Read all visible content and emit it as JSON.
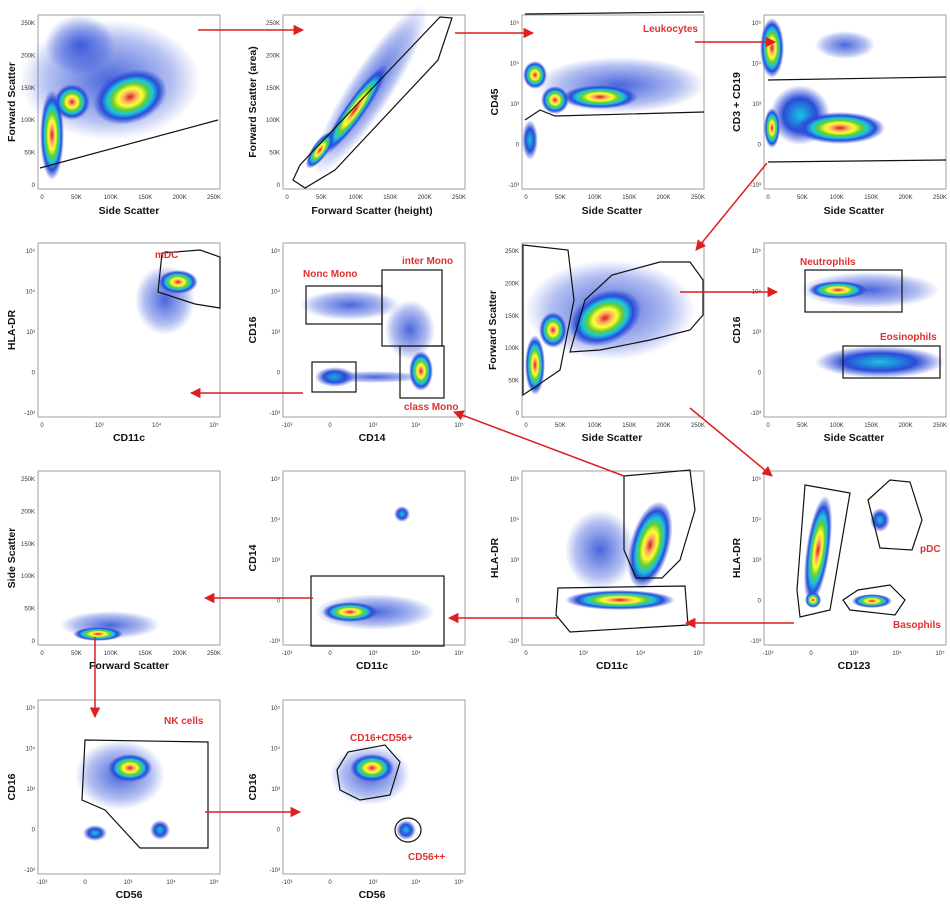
{
  "colors": {
    "arrow": "#dd1f1f",
    "gate": "#111111",
    "population_label": "#e03030"
  },
  "panels": [
    {
      "id": "p1",
      "xlabel": "Side Scatter",
      "ylabel": "Forward Scatter",
      "xticks": [
        "0",
        "50K",
        "100K",
        "150K",
        "200K",
        "250K"
      ],
      "yticks": [
        "250K",
        "200K",
        "150K",
        "100K",
        "50K",
        "0"
      ]
    },
    {
      "id": "p2",
      "xlabel": "Forward Scatter (height)",
      "ylabel": "Forward Scatter (area)",
      "xticks": [
        "0",
        "50K",
        "100K",
        "150K",
        "200K",
        "250K"
      ],
      "yticks": [
        "250K",
        "200K",
        "150K",
        "100K",
        "50K",
        "0"
      ]
    },
    {
      "id": "p3",
      "xlabel": "Side Scatter",
      "ylabel": "CD45",
      "xticks": [
        "0",
        "50K",
        "100K",
        "150K",
        "200K",
        "250K"
      ],
      "yticks": [
        "10⁵",
        "10⁴",
        "10³",
        "0",
        "-10³"
      ],
      "gates": [
        "Leukocytes"
      ]
    },
    {
      "id": "p4",
      "xlabel": "Side Scatter",
      "ylabel": "CD3 + CD19",
      "xticks": [
        "0",
        "50K",
        "100K",
        "150K",
        "200K",
        "250K"
      ],
      "yticks": [
        "10⁵",
        "10⁴",
        "10³",
        "0",
        "-10³"
      ]
    },
    {
      "id": "p5",
      "xlabel": "CD11c",
      "ylabel": "HLA-DR",
      "xticks": [
        "0",
        "10³",
        "10⁴",
        "10⁵"
      ],
      "yticks": [
        "10⁵",
        "10⁴",
        "10³",
        "0",
        "-10³"
      ],
      "gates": [
        "mDC"
      ]
    },
    {
      "id": "p6",
      "xlabel": "CD14",
      "ylabel": "CD16",
      "xticks": [
        "-10³",
        "0",
        "10³",
        "10⁴",
        "10⁵"
      ],
      "yticks": [
        "10⁵",
        "10⁴",
        "10³",
        "0",
        "-10³"
      ],
      "gates": [
        "Nonc Mono",
        "inter Mono",
        "class Mono"
      ]
    },
    {
      "id": "p7",
      "xlabel": "Side Scatter",
      "ylabel": "Forward Scatter",
      "xticks": [
        "0",
        "50K",
        "100K",
        "150K",
        "200K",
        "250K"
      ],
      "yticks": [
        "250K",
        "200K",
        "150K",
        "100K",
        "50K",
        "0"
      ]
    },
    {
      "id": "p8",
      "xlabel": "Side Scatter",
      "ylabel": "CD16",
      "xticks": [
        "0",
        "50K",
        "100K",
        "150K",
        "200K",
        "250K"
      ],
      "yticks": [
        "10⁵",
        "10⁴",
        "10³",
        "0",
        "-10³"
      ],
      "gates": [
        "Neutrophils",
        "Eosinophils"
      ]
    },
    {
      "id": "p9",
      "xlabel": "Forward Scatter",
      "ylabel": "Side Scatter",
      "xticks": [
        "0",
        "50K",
        "100K",
        "150K",
        "200K",
        "250K"
      ],
      "yticks": [
        "250K",
        "200K",
        "150K",
        "100K",
        "50K",
        "0"
      ]
    },
    {
      "id": "p10",
      "xlabel": "CD11c",
      "ylabel": "CD14",
      "xticks": [
        "-10³",
        "0",
        "10³",
        "10⁴",
        "10⁵"
      ],
      "yticks": [
        "10⁵",
        "10⁴",
        "10³",
        "0",
        "-10³"
      ]
    },
    {
      "id": "p11",
      "xlabel": "CD11c",
      "ylabel": "HLA-DR",
      "xticks": [
        "0",
        "10³",
        "10⁴",
        "10⁵"
      ],
      "yticks": [
        "10⁵",
        "10⁴",
        "10³",
        "0",
        "-10³"
      ]
    },
    {
      "id": "p12",
      "xlabel": "CD123",
      "ylabel": "HLA-DR",
      "xticks": [
        "-10³",
        "0",
        "10³",
        "10⁴",
        "10⁵"
      ],
      "yticks": [
        "10⁵",
        "10⁴",
        "10³",
        "0",
        "-10³"
      ],
      "gates": [
        "pDC",
        "Basophils"
      ]
    },
    {
      "id": "p13",
      "xlabel": "CD56",
      "ylabel": "CD16",
      "xticks": [
        "-10³",
        "0",
        "10³",
        "10⁴",
        "10⁵"
      ],
      "yticks": [
        "10⁵",
        "10⁴",
        "10³",
        "0",
        "-10³"
      ],
      "gates": [
        "NK cells"
      ]
    },
    {
      "id": "p14",
      "xlabel": "CD56",
      "ylabel": "CD16",
      "xticks": [
        "-10³",
        "0",
        "10³",
        "10⁴",
        "10⁵"
      ],
      "yticks": [
        "10⁵",
        "10⁴",
        "10³",
        "0",
        "-10³"
      ],
      "gates": [
        "CD16+CD56+",
        "CD56++"
      ]
    }
  ]
}
